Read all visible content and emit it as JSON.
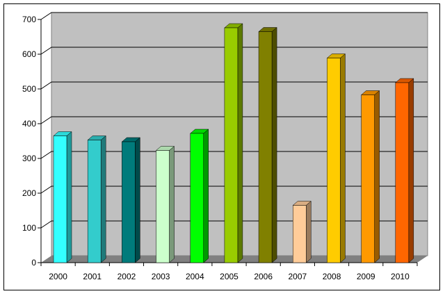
{
  "chart_data": {
    "type": "bar",
    "categories": [
      "2000",
      "2001",
      "2002",
      "2003",
      "2004",
      "2005",
      "2006",
      "2007",
      "2008",
      "2009",
      "2010"
    ],
    "values": [
      365,
      353,
      348,
      323,
      372,
      676,
      665,
      165,
      589,
      483,
      518
    ],
    "colors": [
      "#33ffff",
      "#33cccc",
      "#007b7b",
      "#ccffcc",
      "#00ff00",
      "#99cc00",
      "#808000",
      "#ffcc99",
      "#ffcc00",
      "#ff9900",
      "#ff6600"
    ],
    "yticks": [
      "0",
      "100",
      "200",
      "300",
      "400",
      "500",
      "600",
      "700"
    ],
    "ylim": [
      0,
      700
    ],
    "grid": true,
    "legend": "none",
    "wall_color": "#c0c0c0",
    "floor_color": "#808080"
  }
}
